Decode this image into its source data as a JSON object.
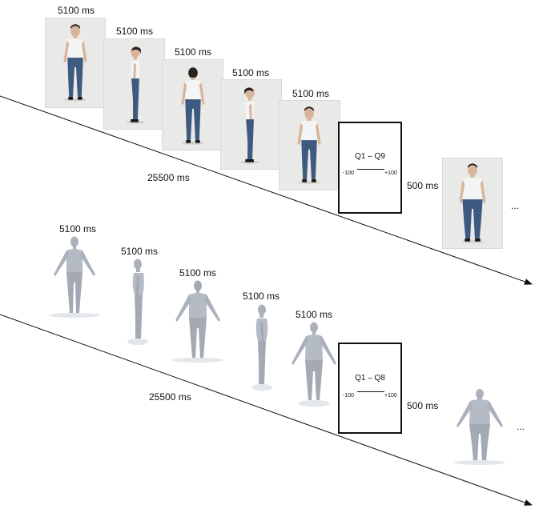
{
  "sequence_photo": {
    "frames": [
      {
        "duration": "5100 ms",
        "view": "front"
      },
      {
        "duration": "5100 ms",
        "view": "side-right"
      },
      {
        "duration": "5100 ms",
        "view": "back"
      },
      {
        "duration": "5100 ms",
        "view": "side-left"
      },
      {
        "duration": "5100 ms",
        "view": "front"
      }
    ],
    "total_duration": "25500 ms",
    "question_card": {
      "title": "Q1 – Q9",
      "scale_min": "-100",
      "scale_max": "+100"
    },
    "interval": "500 ms",
    "continuation": "..."
  },
  "sequence_avatar": {
    "frames": [
      {
        "duration": "5100 ms",
        "view": "front"
      },
      {
        "duration": "5100 ms",
        "view": "side"
      },
      {
        "duration": "5100 ms",
        "view": "back"
      },
      {
        "duration": "5100 ms",
        "view": "side"
      },
      {
        "duration": "5100 ms",
        "view": "front"
      }
    ],
    "total_duration": "25500 ms",
    "question_card": {
      "title": "Q1 – Q8",
      "scale_min": "-100",
      "scale_max": "+100"
    },
    "interval": "500 ms",
    "continuation": "..."
  }
}
